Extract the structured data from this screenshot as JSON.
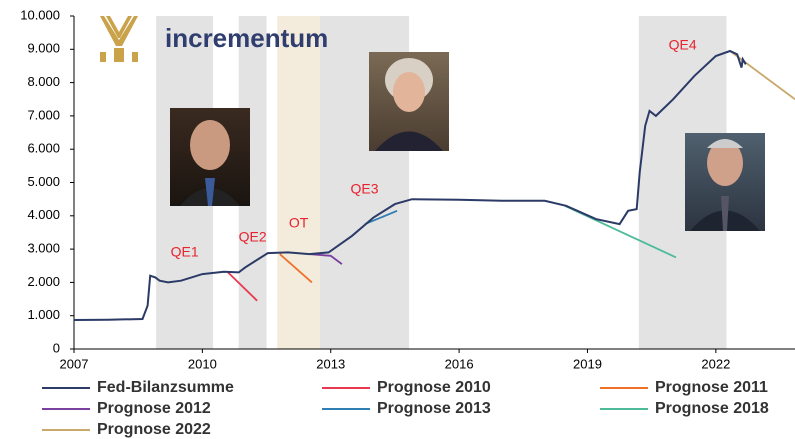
{
  "chart_data": {
    "type": "line",
    "logo": "incrementum",
    "xlim": [
      2007,
      2023.85
    ],
    "xticks": [
      2007,
      2010,
      2013,
      2016,
      2019,
      2022
    ],
    "ylim": [
      0,
      10000
    ],
    "yticks": [
      0,
      {
        "value": 1000,
        "label": "1.000"
      },
      {
        "value": 2000,
        "label": "2.000"
      },
      {
        "value": 3000,
        "label": "3.000"
      },
      {
        "value": 4000,
        "label": "4.000"
      },
      {
        "value": 5000,
        "label": "5.000"
      },
      {
        "value": 6000,
        "label": "6.000"
      },
      {
        "value": 7000,
        "label": "7.000"
      },
      {
        "value": 8000,
        "label": "8.000"
      },
      {
        "value": 9000,
        "label": "9.000"
      },
      {
        "value": 10000,
        "label": "10.000"
      }
    ],
    "grid": false,
    "regions": [
      {
        "label": "QE1",
        "start": 2008.92,
        "end": 2010.25,
        "color": "#e3e3e3"
      },
      {
        "label": "QE2",
        "start": 2010.85,
        "end": 2011.5,
        "color": "#e3e3e3"
      },
      {
        "label": "OT",
        "start": 2011.75,
        "end": 2012.75,
        "color": "#f3ecdc"
      },
      {
        "label": "QE3",
        "start": 2012.75,
        "end": 2014.83,
        "color": "#e3e3e3"
      },
      {
        "label": "QE4",
        "start": 2020.2,
        "end": 2022.25,
        "color": "#e3e3e3"
      }
    ],
    "series": [
      {
        "name": "Fed-Bilanzsumme",
        "color": "#2b3a67",
        "x": [
          2007,
          2007.8,
          2008.6,
          2008.72,
          2008.78,
          2008.9,
          2009.0,
          2009.2,
          2009.5,
          2010.0,
          2010.5,
          2010.85,
          2011.0,
          2011.53,
          2012.0,
          2012.5,
          2012.95,
          2013.5,
          2014.0,
          2014.5,
          2014.9,
          2016.0,
          2017.0,
          2018.0,
          2018.5,
          2019.2,
          2019.75,
          2019.95,
          2020.15,
          2020.22,
          2020.35,
          2020.45,
          2020.6,
          2021.0,
          2021.5,
          2022.0,
          2022.33,
          2022.5,
          2022.6,
          2022.63,
          2022.7
        ],
        "values": [
          870,
          880,
          900,
          1300,
          2200,
          2150,
          2050,
          2000,
          2050,
          2250,
          2320,
          2300,
          2450,
          2880,
          2900,
          2850,
          2900,
          3400,
          3950,
          4350,
          4500,
          4480,
          4450,
          4450,
          4300,
          3900,
          3750,
          4150,
          4200,
          5300,
          6700,
          7150,
          7000,
          7500,
          8200,
          8800,
          8950,
          8850,
          8450,
          8700,
          8550
        ]
      },
      {
        "name": "Prognose 2010",
        "color": "#e8384f",
        "x": [
          2010.6,
          2011.28
        ],
        "values": [
          2300,
          1450
        ]
      },
      {
        "name": "Prognose 2011",
        "color": "#f0702a",
        "x": [
          2011.81,
          2012.56
        ],
        "values": [
          2850,
          2000
        ]
      },
      {
        "name": "Prognose 2012",
        "color": "#7b3f9e",
        "x": [
          2012.5,
          2013.0,
          2013.26
        ],
        "values": [
          2850,
          2800,
          2550
        ]
      },
      {
        "name": "Prognose 2013",
        "color": "#2f7fb5",
        "x": [
          2013.8,
          2014.55
        ],
        "values": [
          3750,
          4150
        ]
      },
      {
        "name": "Prognose 2018",
        "color": "#4dbb9a",
        "x": [
          2018.47,
          2021.07
        ],
        "values": [
          4300,
          2750
        ]
      },
      {
        "name": "Prognose 2022",
        "color": "#c8a96a",
        "x": [
          2022.33,
          2023.85
        ],
        "values": [
          8950,
          7500
        ]
      }
    ]
  }
}
